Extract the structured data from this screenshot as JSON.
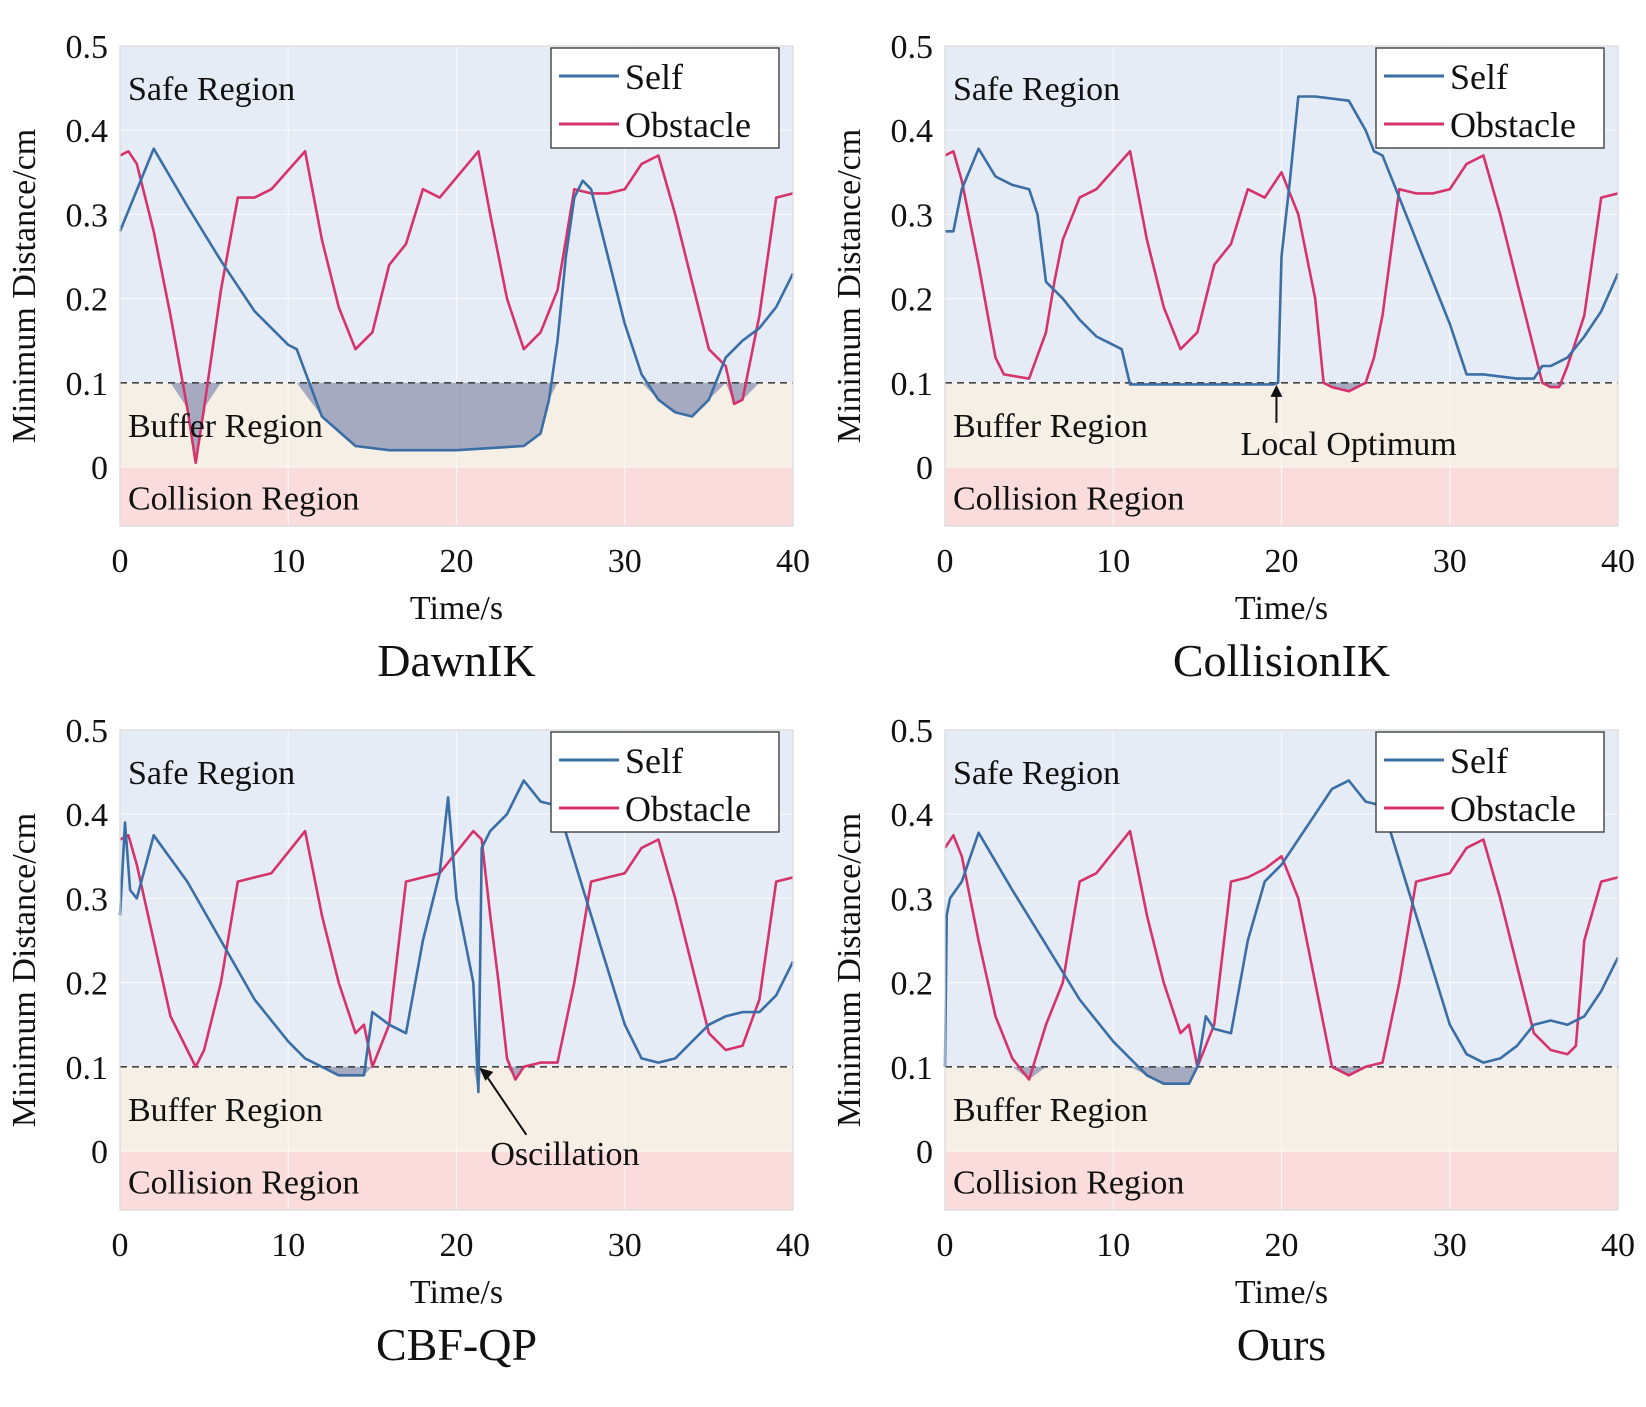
{
  "figure": {
    "colors": {
      "self": "#3a6ea5",
      "obstacle": "#d6336c",
      "safe": "#e6ecf6",
      "buffer": "#f6efe5",
      "collision": "#fbdcdc",
      "fill": "#8a93b3"
    }
  },
  "chart_data": [
    {
      "type": "line",
      "title": "DawnIK",
      "xlabel": "Time/s",
      "ylabel": "Minimum Distance/cm",
      "xlim": [
        0,
        40
      ],
      "ylim": [
        -0.07,
        0.5
      ],
      "xticks": [
        "0",
        "10",
        "20",
        "30",
        "40"
      ],
      "yticks": [
        "0",
        "0.1",
        "0.2",
        "0.3",
        "0.4",
        "0.5"
      ],
      "threshold": 0.1,
      "regions": {
        "safe": "Safe Region",
        "buffer": "Buffer Region",
        "collision": "Collision Region"
      },
      "legend": {
        "position": "top-right",
        "entries": [
          "Self",
          "Obstacle"
        ]
      },
      "annotation": null,
      "series": [
        {
          "name": "Self",
          "x": [
            0,
            2,
            4,
            6,
            8,
            10,
            10.5,
            12,
            14,
            16,
            20,
            24,
            25,
            25.5,
            26,
            26.5,
            27,
            27.5,
            28,
            29,
            30,
            31,
            32,
            33,
            34,
            35,
            36,
            37,
            38,
            39,
            40
          ],
          "y": [
            0.28,
            0.378,
            0.31,
            0.245,
            0.185,
            0.145,
            0.14,
            0.06,
            0.025,
            0.02,
            0.02,
            0.025,
            0.04,
            0.08,
            0.15,
            0.25,
            0.32,
            0.34,
            0.33,
            0.25,
            0.17,
            0.11,
            0.08,
            0.065,
            0.06,
            0.08,
            0.13,
            0.15,
            0.165,
            0.19,
            0.23
          ]
        },
        {
          "name": "Obstacle",
          "x": [
            0,
            0.5,
            1,
            2,
            3,
            4,
            4.5,
            5,
            6,
            7,
            8,
            9,
            11,
            12,
            13,
            14,
            15,
            16,
            17,
            18,
            19,
            21.3,
            22,
            23,
            24,
            25,
            26,
            27,
            28,
            29,
            30,
            31,
            32,
            33,
            34,
            35,
            36,
            36.5,
            37,
            38,
            39,
            40
          ],
          "y": [
            0.37,
            0.375,
            0.36,
            0.28,
            0.18,
            0.07,
            0.005,
            0.07,
            0.21,
            0.32,
            0.32,
            0.33,
            0.375,
            0.27,
            0.19,
            0.14,
            0.16,
            0.24,
            0.265,
            0.33,
            0.32,
            0.375,
            0.3,
            0.2,
            0.14,
            0.16,
            0.21,
            0.33,
            0.325,
            0.325,
            0.33,
            0.36,
            0.37,
            0.3,
            0.22,
            0.14,
            0.12,
            0.075,
            0.08,
            0.18,
            0.32,
            0.325
          ]
        }
      ]
    },
    {
      "type": "line",
      "title": "CollisionIK",
      "xlabel": "Time/s",
      "ylabel": "Minimum Distance/cm",
      "xlim": [
        0,
        40
      ],
      "ylim": [
        -0.07,
        0.5
      ],
      "xticks": [
        "0",
        "10",
        "20",
        "30",
        "40"
      ],
      "yticks": [
        "0",
        "0.1",
        "0.2",
        "0.3",
        "0.4",
        "0.5"
      ],
      "threshold": 0.1,
      "regions": {
        "safe": "Safe Region",
        "buffer": "Buffer Region",
        "collision": "Collision Region"
      },
      "legend": {
        "position": "top-right",
        "entries": [
          "Self",
          "Obstacle"
        ]
      },
      "annotation": {
        "text": "Local Optimum",
        "x": 19.7,
        "y": 0.1
      },
      "series": [
        {
          "name": "Self",
          "x": [
            0,
            0.5,
            1,
            2,
            3,
            4,
            5,
            5.5,
            6,
            7,
            8,
            9,
            10,
            10.5,
            11,
            19.5,
            19.8,
            20,
            20.5,
            21,
            22,
            24,
            25,
            25.5,
            26,
            28,
            30,
            31,
            32,
            34,
            35,
            35.5,
            36,
            37,
            38,
            39,
            40
          ],
          "y": [
            0.28,
            0.28,
            0.33,
            0.378,
            0.345,
            0.335,
            0.33,
            0.3,
            0.22,
            0.2,
            0.175,
            0.155,
            0.145,
            0.14,
            0.098,
            0.098,
            0.1,
            0.25,
            0.34,
            0.44,
            0.44,
            0.435,
            0.4,
            0.375,
            0.37,
            0.27,
            0.17,
            0.11,
            0.11,
            0.105,
            0.105,
            0.12,
            0.12,
            0.13,
            0.155,
            0.185,
            0.23
          ]
        },
        {
          "name": "Obstacle",
          "x": [
            0,
            0.5,
            1,
            2,
            3,
            3.5,
            5,
            6,
            6.5,
            7,
            8,
            9,
            11,
            12,
            13,
            14,
            15,
            16,
            17,
            18,
            19,
            20,
            21,
            22,
            22.5,
            23,
            24,
            25,
            25.5,
            26,
            27,
            28,
            29,
            30,
            31,
            32,
            33,
            34,
            35,
            35.5,
            36,
            36.5,
            37,
            38,
            39,
            40
          ],
          "y": [
            0.37,
            0.375,
            0.34,
            0.24,
            0.13,
            0.11,
            0.105,
            0.16,
            0.22,
            0.27,
            0.32,
            0.33,
            0.375,
            0.27,
            0.19,
            0.14,
            0.16,
            0.24,
            0.265,
            0.33,
            0.32,
            0.35,
            0.3,
            0.2,
            0.1,
            0.095,
            0.09,
            0.1,
            0.13,
            0.18,
            0.33,
            0.325,
            0.325,
            0.33,
            0.36,
            0.37,
            0.3,
            0.22,
            0.14,
            0.1,
            0.095,
            0.095,
            0.12,
            0.18,
            0.32,
            0.325
          ]
        }
      ]
    },
    {
      "type": "line",
      "title": "CBF-QP",
      "xlabel": "Time/s",
      "ylabel": "Minimum Distance/cm",
      "xlim": [
        0,
        40
      ],
      "ylim": [
        -0.07,
        0.5
      ],
      "xticks": [
        "0",
        "10",
        "20",
        "30",
        "40"
      ],
      "yticks": [
        "0",
        "0.1",
        "0.2",
        "0.3",
        "0.4",
        "0.5"
      ],
      "threshold": 0.1,
      "regions": {
        "safe": "Safe Region",
        "buffer": "Buffer Region",
        "collision": "Collision Region"
      },
      "legend": {
        "position": "top-right",
        "entries": [
          "Self",
          "Obstacle"
        ]
      },
      "annotation": {
        "text": "Oscillation",
        "x": 21.3,
        "y": 0.1
      },
      "series": [
        {
          "name": "Self",
          "x": [
            0,
            0.3,
            0.6,
            1,
            2,
            4,
            6,
            8,
            10,
            11,
            12,
            13,
            14.5,
            15,
            16,
            17,
            18,
            19,
            19.5,
            20,
            20.5,
            21,
            21.3,
            21.5,
            22,
            23,
            24,
            25,
            26,
            28,
            30,
            31,
            32,
            33,
            34,
            35,
            36,
            37,
            38,
            39,
            40
          ],
          "y": [
            0.28,
            0.39,
            0.31,
            0.3,
            0.375,
            0.32,
            0.25,
            0.18,
            0.13,
            0.11,
            0.1,
            0.09,
            0.09,
            0.165,
            0.15,
            0.14,
            0.25,
            0.33,
            0.42,
            0.3,
            0.25,
            0.2,
            0.07,
            0.36,
            0.38,
            0.4,
            0.44,
            0.415,
            0.41,
            0.28,
            0.15,
            0.11,
            0.105,
            0.11,
            0.13,
            0.15,
            0.16,
            0.165,
            0.165,
            0.185,
            0.225
          ]
        },
        {
          "name": "Obstacle",
          "x": [
            0,
            0.5,
            1,
            2,
            3,
            4,
            4.5,
            5,
            6,
            7,
            8,
            9,
            11,
            12,
            13,
            14,
            14.5,
            15,
            16,
            17,
            18,
            19,
            21,
            21.5,
            22,
            22.5,
            23,
            23.5,
            24,
            25,
            26,
            27,
            28,
            29,
            30,
            31,
            32,
            33,
            34,
            35,
            36,
            37,
            38,
            39,
            40
          ],
          "y": [
            0.37,
            0.375,
            0.34,
            0.25,
            0.16,
            0.12,
            0.1,
            0.12,
            0.2,
            0.32,
            0.325,
            0.33,
            0.38,
            0.28,
            0.2,
            0.14,
            0.15,
            0.1,
            0.15,
            0.32,
            0.325,
            0.33,
            0.38,
            0.37,
            0.28,
            0.2,
            0.11,
            0.085,
            0.1,
            0.105,
            0.105,
            0.2,
            0.32,
            0.325,
            0.33,
            0.36,
            0.37,
            0.3,
            0.22,
            0.14,
            0.12,
            0.125,
            0.18,
            0.32,
            0.325
          ]
        }
      ]
    },
    {
      "type": "line",
      "title": "Ours",
      "xlabel": "Time/s",
      "ylabel": "Minimum Distance/cm",
      "xlim": [
        0,
        40
      ],
      "ylim": [
        -0.07,
        0.5
      ],
      "xticks": [
        "0",
        "10",
        "20",
        "30",
        "40"
      ],
      "yticks": [
        "0",
        "0.1",
        "0.2",
        "0.3",
        "0.4",
        "0.5"
      ],
      "threshold": 0.1,
      "regions": {
        "safe": "Safe Region",
        "buffer": "Buffer Region",
        "collision": "Collision Region"
      },
      "legend": {
        "position": "top-right",
        "entries": [
          "Self",
          "Obstacle"
        ]
      },
      "annotation": null,
      "series": [
        {
          "name": "Self",
          "x": [
            0,
            0.1,
            0.3,
            1,
            2,
            4,
            6,
            8,
            10,
            11,
            12,
            13,
            14.5,
            15,
            15.5,
            16,
            17,
            18,
            19,
            20,
            21,
            22,
            23,
            24,
            25,
            26,
            28,
            30,
            31,
            32,
            33,
            34,
            35,
            36,
            37,
            38,
            39,
            40
          ],
          "y": [
            0.1,
            0.28,
            0.3,
            0.32,
            0.378,
            0.31,
            0.245,
            0.18,
            0.13,
            0.11,
            0.09,
            0.08,
            0.08,
            0.1,
            0.16,
            0.145,
            0.14,
            0.25,
            0.32,
            0.34,
            0.37,
            0.4,
            0.43,
            0.44,
            0.415,
            0.41,
            0.28,
            0.15,
            0.115,
            0.105,
            0.11,
            0.125,
            0.15,
            0.155,
            0.15,
            0.16,
            0.19,
            0.23
          ]
        },
        {
          "name": "Obstacle",
          "x": [
            0,
            0.5,
            1,
            2,
            3,
            4,
            5,
            6,
            7,
            8,
            9,
            11,
            12,
            13,
            14,
            14.5,
            15,
            16,
            17,
            18,
            19,
            20,
            21,
            22,
            23,
            24,
            25,
            26,
            27,
            28,
            29,
            30,
            31,
            32,
            33,
            34,
            35,
            36,
            37,
            37.5,
            38,
            39,
            40
          ],
          "y": [
            0.36,
            0.375,
            0.35,
            0.25,
            0.16,
            0.11,
            0.085,
            0.15,
            0.2,
            0.32,
            0.33,
            0.38,
            0.28,
            0.2,
            0.14,
            0.15,
            0.1,
            0.15,
            0.32,
            0.325,
            0.335,
            0.35,
            0.3,
            0.2,
            0.1,
            0.09,
            0.1,
            0.105,
            0.2,
            0.32,
            0.325,
            0.33,
            0.36,
            0.37,
            0.3,
            0.22,
            0.14,
            0.12,
            0.115,
            0.125,
            0.25,
            0.32,
            0.325
          ]
        }
      ]
    }
  ]
}
